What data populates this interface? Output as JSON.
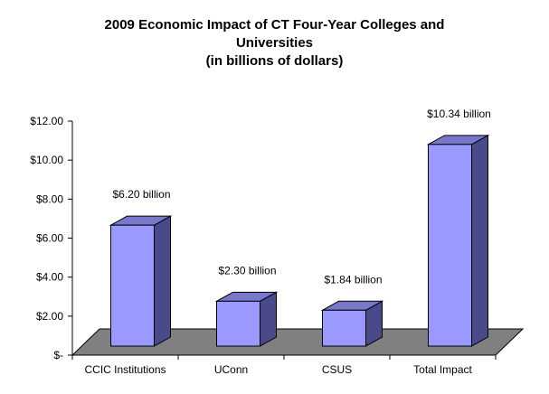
{
  "chart_data": {
    "type": "bar",
    "title_lines": [
      "2009 Economic Impact of CT Four-Year Colleges and",
      "Universities",
      "(in billions of dollars)"
    ],
    "categories": [
      "CCIC Institutions",
      "UConn",
      "CSUS",
      "Total Impact"
    ],
    "values": [
      6.2,
      2.3,
      1.84,
      10.34
    ],
    "data_labels": [
      "$6.20 billion",
      "$2.30 billion",
      "$1.84 billion",
      "$10.34 billion"
    ],
    "y_tick_labels": [
      "$-",
      "$2.00",
      "$4.00",
      "$6.00",
      "$8.00",
      "$10.00",
      "$12.00"
    ],
    "y_ticks": [
      0,
      2,
      4,
      6,
      8,
      10,
      12
    ],
    "ylim": [
      0,
      12
    ],
    "xlabel": "",
    "ylabel": "",
    "grid": false,
    "legend": "none",
    "style_3d": true,
    "colors": {
      "bar_front": "#9999ff",
      "bar_side": "#4a4a8a",
      "bar_top": "#7777cc",
      "floor": "#808080",
      "outline": "#000000"
    }
  }
}
